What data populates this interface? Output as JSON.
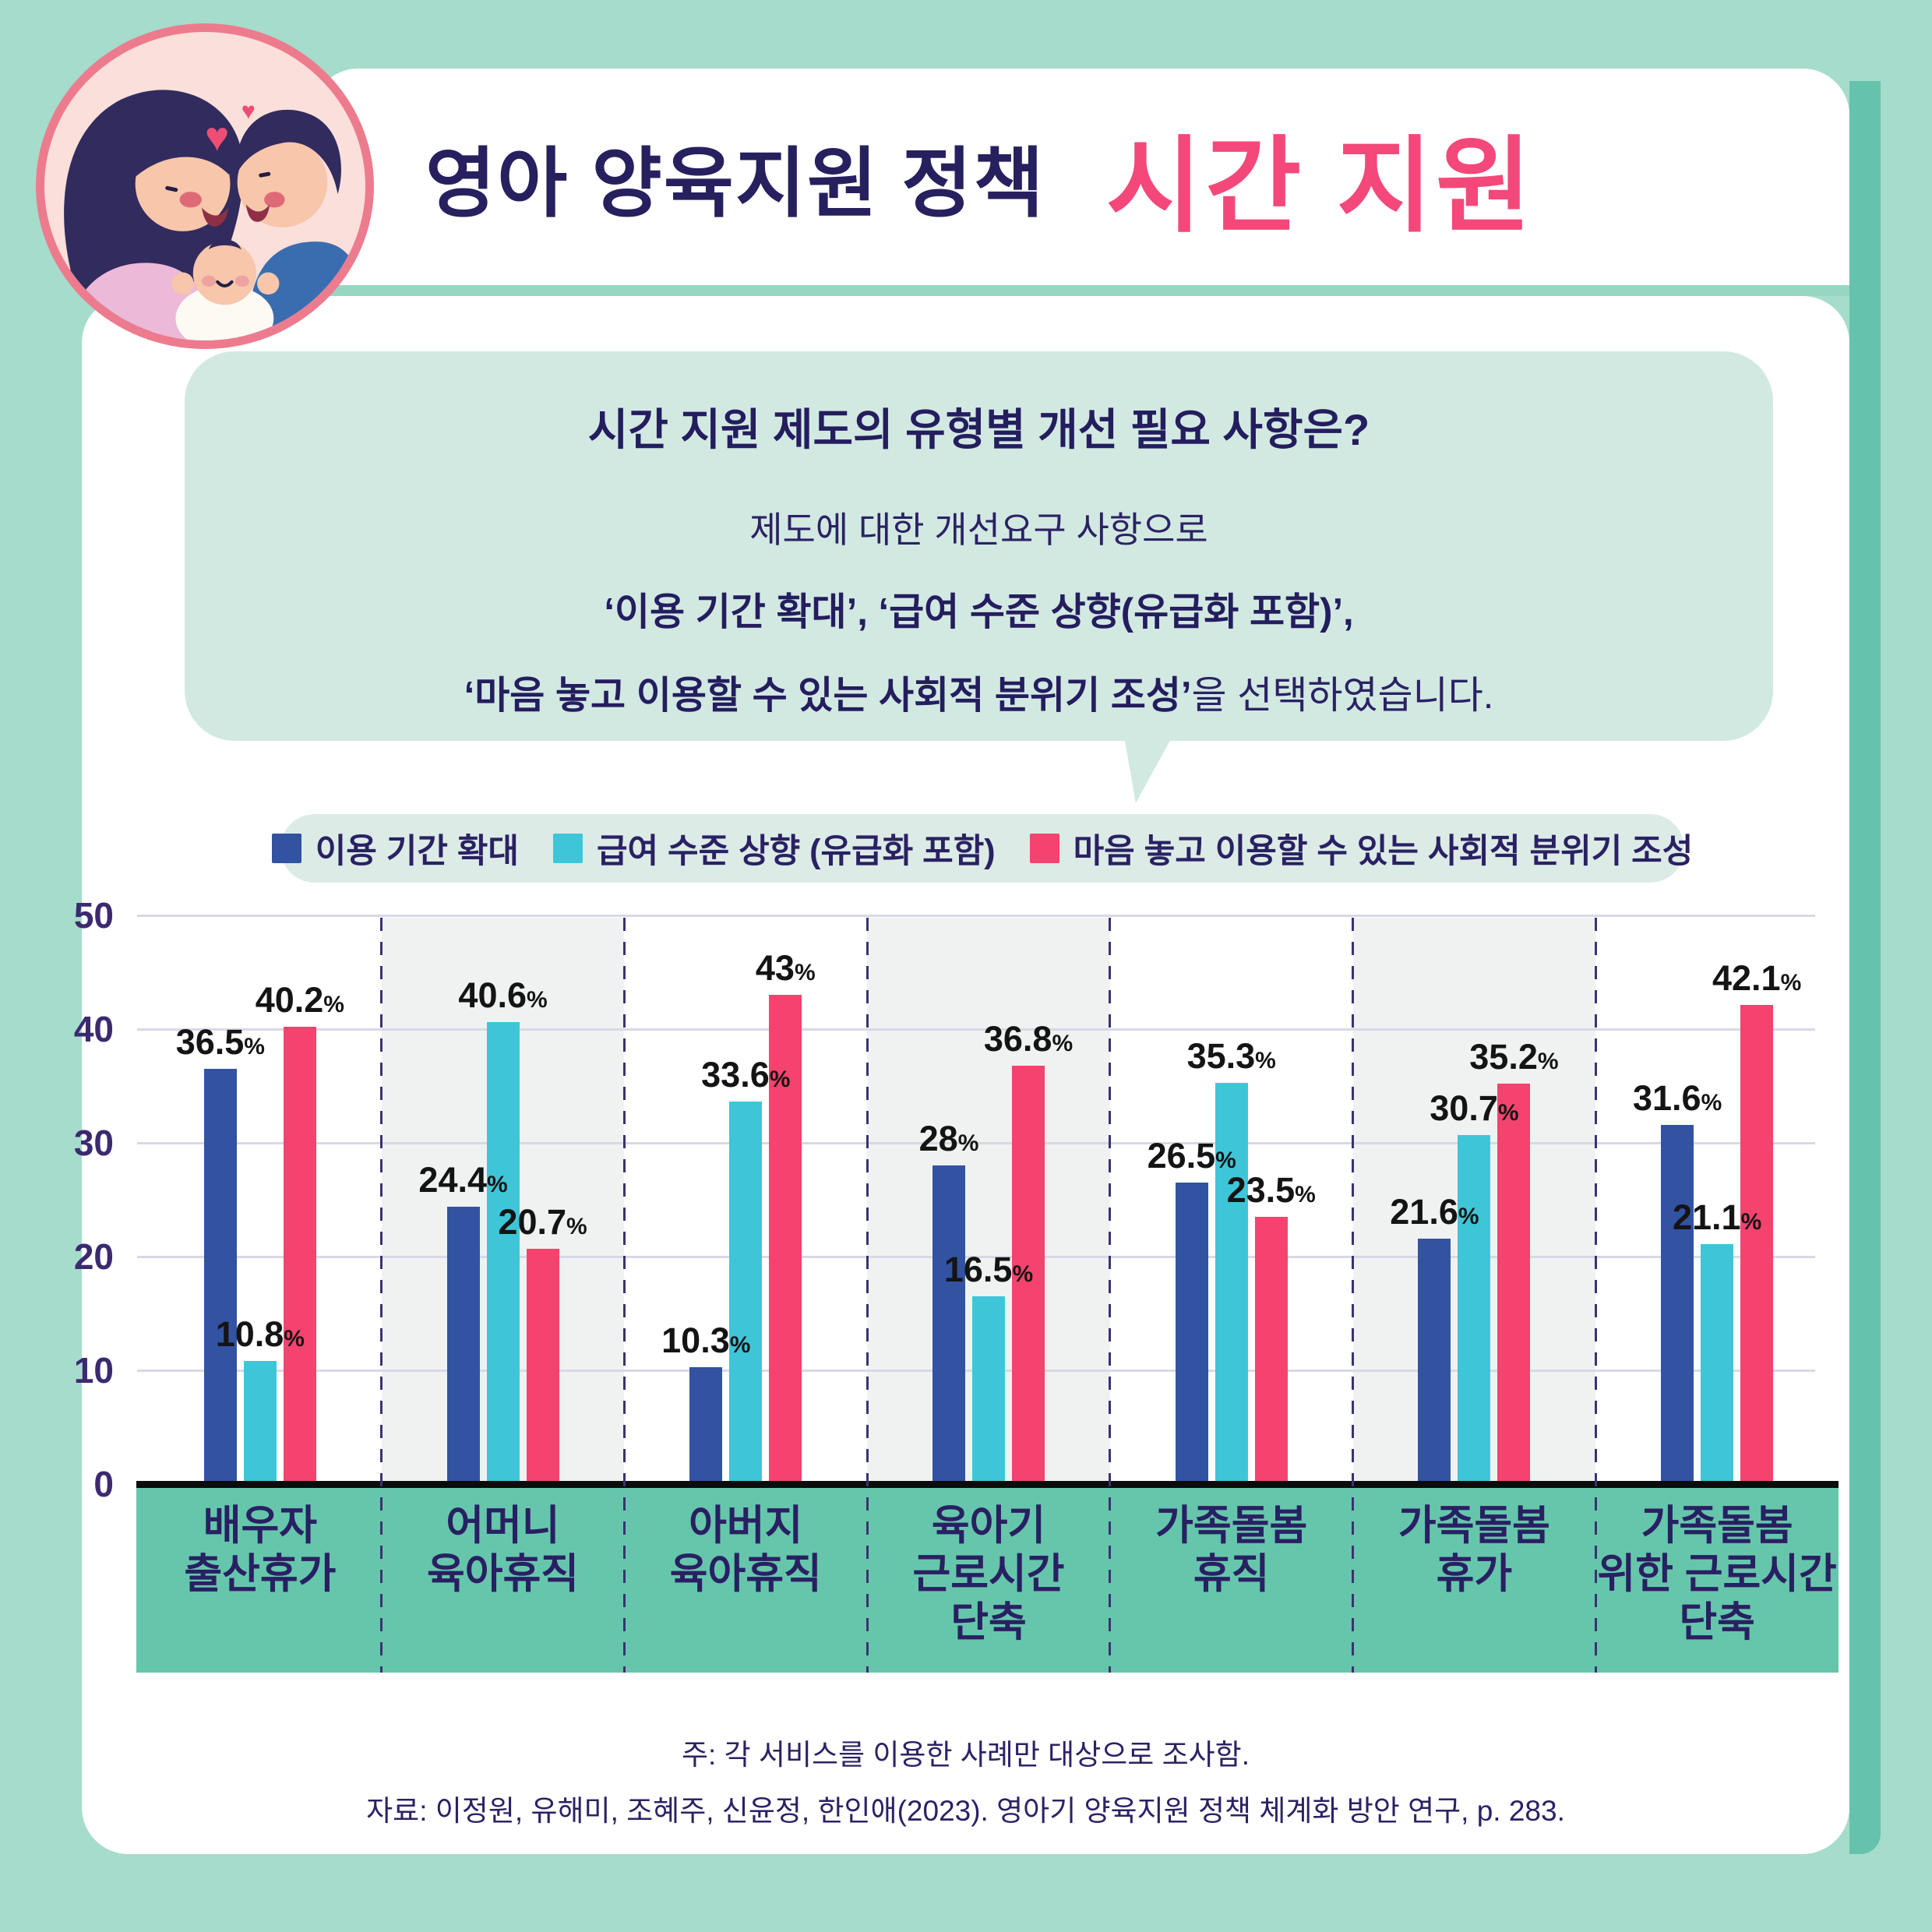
{
  "colors": {
    "background": "#a6dccb",
    "card": "#ffffff",
    "card_shadow": "#66c3ab",
    "divider": "#97d7c1",
    "bubble_bg": "#d2e9e2",
    "legend_bg": "#dcebe6",
    "title_navy": "#27205e",
    "title_pink": "#f4487a",
    "text_navy": "#292063",
    "axis_label": "#3b2a70",
    "gridline": "#d8d9e5",
    "separator": "#3b3272",
    "shaded_band": "#f0f2f2",
    "baseline": "#0c0c0c",
    "category_band": "#66c6ab",
    "data_label": "#141414",
    "circle_border": "#ed7b8e",
    "circle_bg": "#fbdfda"
  },
  "header": {
    "title": "영아 양육지원 정책",
    "highlight": "시간 지원"
  },
  "bubble": {
    "title": "시간 지원 제도의 유형별 개선 필요 사항은?",
    "line1": "제도에 대한 개선요구 사항으로",
    "line2_bold": "‘이용 기간 확대’, ‘급여 수준 상향(유급화 포함)’,",
    "line3_bold": "‘마음 놓고 이용할 수 있는 사회적 분위기 조성’",
    "line3_tail": "을 선택하였습니다."
  },
  "legend": [
    {
      "label": "이용 기간 확대",
      "color": "#3253a2"
    },
    {
      "label": "급여 수준 상향 (유급화 포함)",
      "color": "#3ec6d8"
    },
    {
      "label": "마음 놓고 이용할 수 있는 사회적 분위기 조성",
      "color": "#f4436e"
    }
  ],
  "chart_data": {
    "type": "bar",
    "title": "시간 지원 제도의 유형별 개선 필요 사항",
    "unit": "%",
    "categories": [
      [
        "배우자",
        "출산휴가"
      ],
      [
        "어머니",
        "육아휴직"
      ],
      [
        "아버지",
        "육아휴직"
      ],
      [
        "육아기",
        "근로시간",
        "단축"
      ],
      [
        "가족돌봄",
        "휴직"
      ],
      [
        "가족돌봄",
        "휴가"
      ],
      [
        "가족돌봄",
        "위한 근로시간",
        "단축"
      ]
    ],
    "series": [
      {
        "name": "이용 기간 확대",
        "color": "#3253a2",
        "values": [
          36.5,
          24.4,
          10.3,
          28,
          26.5,
          21.6,
          31.6
        ]
      },
      {
        "name": "급여 수준 상향 (유급화 포함)",
        "color": "#3ec6d8",
        "values": [
          10.8,
          40.6,
          33.6,
          16.5,
          35.3,
          30.7,
          21.1
        ]
      },
      {
        "name": "마음 놓고 이용할 수 있는 사회적 분위기 조성",
        "color": "#f4436e",
        "values": [
          40.2,
          20.7,
          43,
          36.8,
          23.5,
          35.2,
          42.1
        ]
      }
    ],
    "ylim": [
      0,
      50
    ],
    "yticks": [
      0,
      10,
      20,
      30,
      40,
      50
    ],
    "grid": true,
    "legend_position": "top",
    "shaded_groups": [
      1,
      3,
      5
    ]
  },
  "footer": {
    "note": "주: 각 서비스를 이용한 사례만 대상으로 조사함.",
    "source": "자료: 이정원, 유해미, 조혜주, 신윤정, 한인애(2023). 영아기 양육지원 정책 체계화 방안 연구, p. 283."
  }
}
